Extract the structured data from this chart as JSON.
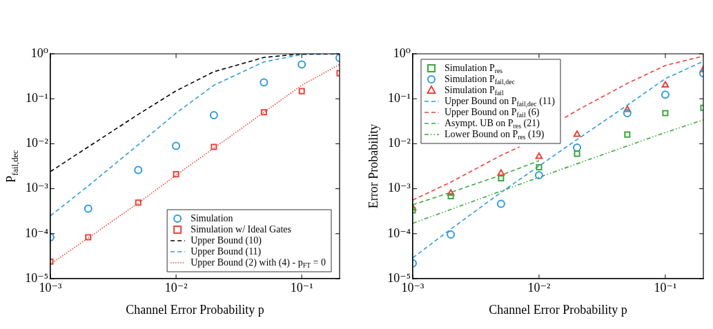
{
  "chart_data": [
    {
      "type": "line",
      "xlabel": "Channel Error Probability p",
      "ylabel": "P$_{fail,dec}$",
      "log": "xy",
      "legend": "bottom right",
      "xlim": [
        0.001,
        0.2
      ],
      "ylim": [
        1e-05,
        1
      ],
      "xticks": [
        {
          "value": 0.001,
          "label": "10⁻³"
        },
        {
          "value": 0.01,
          "label": "10⁻²"
        },
        {
          "value": 0.1,
          "label": "10⁻¹"
        }
      ],
      "yticks": [
        {
          "value": 1e-05,
          "label": "10⁻⁵"
        },
        {
          "value": 0.0001,
          "label": "10⁻⁴"
        },
        {
          "value": 0.001,
          "label": "10⁻³"
        },
        {
          "value": 0.01,
          "label": "10⁻²"
        },
        {
          "value": 0.1,
          "label": "10⁻¹"
        },
        {
          "value": 1,
          "label": "10⁰"
        }
      ],
      "x": [
        0.001,
        0.002,
        0.005,
        0.01,
        0.02,
        0.05,
        0.1,
        0.2
      ],
      "series": [
        {
          "name": "Simulation",
          "type": "scatter",
          "marker": "circle",
          "color": "#2f9bdc",
          "values": [
            8.3e-05,
            0.00036,
            0.0026,
            0.009,
            0.043,
            0.23,
            0.58,
            0.81
          ]
        },
        {
          "name": "Simulation w/ Ideal Gates",
          "type": "scatter",
          "marker": "square",
          "color": "#e8443a",
          "values": [
            2.4e-05,
            8.3e-05,
            0.00049,
            0.0021,
            0.0085,
            0.05,
            0.148,
            0.37
          ]
        },
        {
          "name": "Upper Bound (10)",
          "type": "line",
          "marker": "none",
          "line_style": "dashed",
          "color": "#000000",
          "values": [
            0.0024,
            0.0085,
            0.045,
            0.15,
            0.4,
            0.83,
            1,
            1
          ]
        },
        {
          "name": "Upper Bound (11)",
          "type": "line",
          "marker": "none",
          "line_style": "dashed",
          "color": "#2f9bdc",
          "values": [
            0.00025,
            0.00115,
            0.0095,
            0.048,
            0.2,
            0.66,
            0.96,
            1
          ]
        },
        {
          "name": "Upper Bound (2) with (4) - p$_{FT}$ = 0",
          "type": "line",
          "marker": "none",
          "line_style": "dotted",
          "color": "#e8443a",
          "values": [
            2.1e-05,
            8e-05,
            0.00048,
            0.002,
            0.008,
            0.05,
            0.2,
            0.58
          ]
        }
      ]
    },
    {
      "type": "line",
      "xlabel": "Channel Error Probability p",
      "ylabel": "Error Probability",
      "log": "xy",
      "legend": "top left",
      "xlim": [
        0.001,
        0.2
      ],
      "ylim": [
        1e-05,
        1
      ],
      "xticks": [
        {
          "value": 0.001,
          "label": "10⁻³"
        },
        {
          "value": 0.01,
          "label": "10⁻²"
        },
        {
          "value": 0.1,
          "label": "10⁻¹"
        }
      ],
      "yticks": [
        {
          "value": 1e-05,
          "label": "10⁻⁵"
        },
        {
          "value": 0.0001,
          "label": "10⁻⁴"
        },
        {
          "value": 0.001,
          "label": "10⁻³"
        },
        {
          "value": 0.01,
          "label": "10⁻²"
        },
        {
          "value": 0.1,
          "label": "10⁻¹"
        },
        {
          "value": 1,
          "label": "10⁰"
        }
      ],
      "x": [
        0.001,
        0.002,
        0.005,
        0.01,
        0.02,
        0.05,
        0.1,
        0.2
      ],
      "series": [
        {
          "name": "Simulation P$_{res}$",
          "type": "scatter",
          "marker": "square",
          "color": "#3aa83a",
          "values": [
            0.00033,
            0.00068,
            0.0017,
            0.003,
            0.006,
            0.016,
            0.048,
            0.063
          ]
        },
        {
          "name": "Simulation P$_{fail,dec}$",
          "type": "scatter",
          "marker": "circle",
          "color": "#2f9bdc",
          "values": [
            2.2e-05,
            9.6e-05,
            0.00046,
            0.002,
            0.0082,
            0.048,
            0.123,
            0.37
          ]
        },
        {
          "name": "Simulation P$_{fail}$",
          "type": "scatter",
          "marker": "triangle",
          "color": "#e8443a",
          "values": [
            0.00037,
            0.00079,
            0.0022,
            0.0052,
            0.016,
            0.057,
            0.2,
            0.44
          ]
        },
        {
          "name": "Upper Bound on P$_{fail,dec}$ (11)",
          "type": "line",
          "marker": "none",
          "line_style": "dashed",
          "color": "#2f9bdc",
          "values": [
            2.9e-05,
            0.000126,
            0.00083,
            0.0032,
            0.0124,
            0.072,
            0.28,
            0.68
          ]
        },
        {
          "name": "Upper Bound on P$_{fail}$ (6)",
          "type": "line",
          "marker": "none",
          "line_style": "dashed",
          "color": "#e8443a",
          "x": [
            0.001,
            0.002,
            0.005,
            0.007,
            0.01,
            0.016,
            0.02,
            0.05,
            0.1,
            0.2
          ],
          "values": [
            0.00056,
            0.0014,
            0.0055,
            0.0085,
            null,
            0.038,
            0.055,
            0.22,
            0.55,
            0.89
          ]
        },
        {
          "name": "Asympt. UB on P$_{res}$ (21)",
          "type": "line",
          "marker": "none",
          "line_style": "dashed",
          "color": "#3aa83a",
          "x": [
            0.001,
            0.002,
            0.005,
            0.01
          ],
          "values": [
            0.00044,
            0.00083,
            0.002,
            0.0042
          ]
        },
        {
          "name": "Lower Bound on P$_{res}$ (19)",
          "type": "line",
          "marker": "none",
          "line_style": "dashdot",
          "color": "#3aa83a",
          "x": [
            0.001,
            0.01,
            0.1,
            0.2
          ],
          "values": [
            0.00017,
            0.0018,
            0.0177,
            0.034
          ]
        }
      ]
    }
  ]
}
